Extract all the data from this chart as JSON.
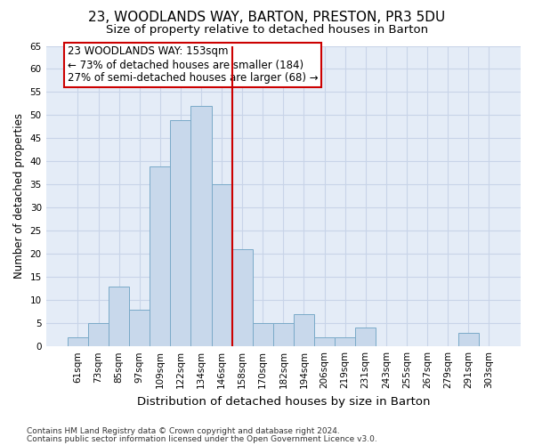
{
  "title": "23, WOODLANDS WAY, BARTON, PRESTON, PR3 5DU",
  "subtitle": "Size of property relative to detached houses in Barton",
  "xlabel": "Distribution of detached houses by size in Barton",
  "ylabel": "Number of detached properties",
  "categories": [
    "61sqm",
    "73sqm",
    "85sqm",
    "97sqm",
    "109sqm",
    "122sqm",
    "134sqm",
    "146sqm",
    "158sqm",
    "170sqm",
    "182sqm",
    "194sqm",
    "206sqm",
    "219sqm",
    "231sqm",
    "243sqm",
    "255sqm",
    "267sqm",
    "279sqm",
    "291sqm",
    "303sqm"
  ],
  "values": [
    2,
    5,
    13,
    8,
    39,
    49,
    52,
    35,
    21,
    5,
    5,
    7,
    2,
    2,
    4,
    0,
    0,
    0,
    0,
    3,
    0
  ],
  "bar_color": "#c8d8eb",
  "bar_edge_color": "#7aaac8",
  "vline_x": 7.5,
  "vline_color": "#cc0000",
  "vline_linewidth": 1.5,
  "annotation_line1": "23 WOODLANDS WAY: 153sqm",
  "annotation_line2": "← 73% of detached houses are smaller (184)",
  "annotation_line3": "27% of semi-detached houses are larger (68) →",
  "annotation_box_color": "#cc0000",
  "ylim": [
    0,
    65
  ],
  "yticks": [
    0,
    5,
    10,
    15,
    20,
    25,
    30,
    35,
    40,
    45,
    50,
    55,
    60,
    65
  ],
  "grid_color": "#c8d4e8",
  "background_color": "#e4ecf7",
  "footer_line1": "Contains HM Land Registry data © Crown copyright and database right 2024.",
  "footer_line2": "Contains public sector information licensed under the Open Government Licence v3.0.",
  "title_fontsize": 11,
  "subtitle_fontsize": 9.5,
  "xlabel_fontsize": 9.5,
  "ylabel_fontsize": 8.5,
  "tick_fontsize": 7.5,
  "annotation_fontsize": 8.5,
  "footer_fontsize": 6.5
}
